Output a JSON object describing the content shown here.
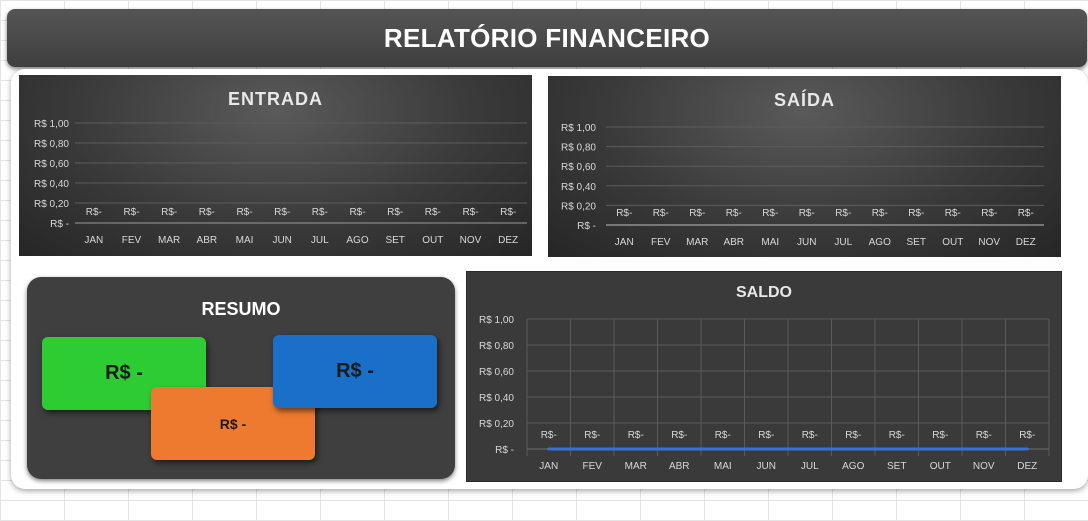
{
  "header": {
    "title": "RELATÓRIO FINANCEIRO"
  },
  "resumo": {
    "title": "RESUMO",
    "cards": [
      {
        "name": "green",
        "value": "R$ -",
        "color": "#2ecc33"
      },
      {
        "name": "blue",
        "value": "R$ -",
        "color": "#1a6fc9"
      },
      {
        "name": "orange",
        "value": "R$ -",
        "color": "#ee7a2f"
      }
    ]
  },
  "chart_data": [
    {
      "id": "entrada",
      "type": "bar",
      "title": "ENTRADA",
      "categories": [
        "JAN",
        "FEV",
        "MAR",
        "ABR",
        "MAI",
        "JUN",
        "JUL",
        "AGO",
        "SET",
        "OUT",
        "NOV",
        "DEZ"
      ],
      "values": [
        0,
        0,
        0,
        0,
        0,
        0,
        0,
        0,
        0,
        0,
        0,
        0
      ],
      "data_labels": [
        "R$-",
        "R$-",
        "R$-",
        "R$-",
        "R$-",
        "R$-",
        "R$-",
        "R$-",
        "R$-",
        "R$-",
        "R$-",
        "R$-"
      ],
      "yticks": [
        "R$ -",
        "R$ 0,20",
        "R$ 0,40",
        "R$ 0,60",
        "R$ 0,80",
        "R$ 1,00"
      ],
      "ylim": [
        0,
        1
      ],
      "grid": true
    },
    {
      "id": "saida",
      "type": "bar",
      "title": "SAÍDA",
      "categories": [
        "JAN",
        "FEV",
        "MAR",
        "ABR",
        "MAI",
        "JUN",
        "JUL",
        "AGO",
        "SET",
        "OUT",
        "NOV",
        "DEZ"
      ],
      "values": [
        0,
        0,
        0,
        0,
        0,
        0,
        0,
        0,
        0,
        0,
        0,
        0
      ],
      "data_labels": [
        "R$-",
        "R$-",
        "R$-",
        "R$-",
        "R$-",
        "R$-",
        "R$-",
        "R$-",
        "R$-",
        "R$-",
        "R$-",
        "R$-"
      ],
      "yticks": [
        "R$ -",
        "R$ 0,20",
        "R$ 0,40",
        "R$ 0,60",
        "R$ 0,80",
        "R$ 1,00"
      ],
      "ylim": [
        0,
        1
      ],
      "grid": true
    },
    {
      "id": "saldo",
      "type": "line",
      "title": "SALDO",
      "categories": [
        "JAN",
        "FEV",
        "MAR",
        "ABR",
        "MAI",
        "JUN",
        "JUL",
        "AGO",
        "SET",
        "OUT",
        "NOV",
        "DEZ"
      ],
      "values": [
        0,
        0,
        0,
        0,
        0,
        0,
        0,
        0,
        0,
        0,
        0,
        0
      ],
      "data_labels": [
        "R$-",
        "R$-",
        "R$-",
        "R$-",
        "R$-",
        "R$-",
        "R$-",
        "R$-",
        "R$-",
        "R$-",
        "R$-",
        "R$-"
      ],
      "yticks": [
        "R$ -",
        "R$ 0,20",
        "R$ 0,40",
        "R$ 0,60",
        "R$ 0,80",
        "R$ 1,00"
      ],
      "ylim": [
        0,
        1
      ],
      "grid": true,
      "line_color": "#3b6fd6"
    }
  ]
}
